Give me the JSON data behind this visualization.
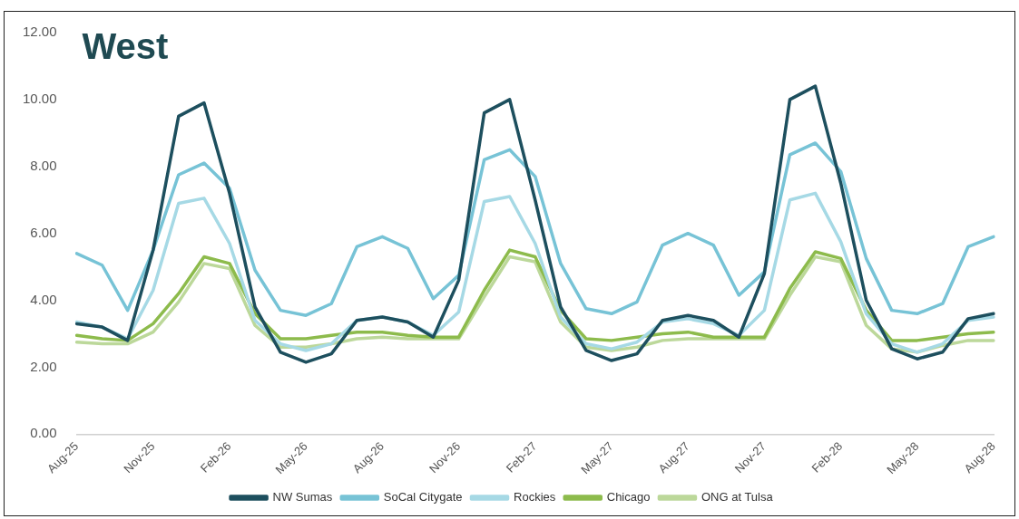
{
  "chart_data": {
    "type": "line",
    "title": "West",
    "categories": [
      "Aug-25",
      null,
      null,
      "Nov-25",
      null,
      null,
      "Feb-26",
      null,
      null,
      "May-26",
      null,
      null,
      "Aug-26",
      null,
      null,
      "Nov-26",
      null,
      null,
      "Feb-27",
      null,
      null,
      "May-27",
      null,
      null,
      "Aug-27",
      null,
      null,
      "Nov-27",
      null,
      null,
      "Feb-28",
      null,
      null,
      "May-28",
      null,
      null,
      "Aug-28"
    ],
    "series": [
      {
        "name": "NW Sumas",
        "color": "#1d4f5e",
        "values": [
          3.3,
          3.2,
          2.8,
          5.5,
          9.5,
          9.9,
          7.2,
          3.8,
          2.45,
          2.15,
          2.4,
          3.4,
          3.5,
          3.35,
          2.9,
          4.6,
          9.6,
          10.0,
          7.0,
          3.8,
          2.5,
          2.2,
          2.4,
          3.4,
          3.55,
          3.4,
          2.9,
          4.8,
          10.0,
          10.4,
          7.5,
          4.0,
          2.55,
          2.25,
          2.45,
          3.45,
          3.6
        ]
      },
      {
        "name": "SoCal Citygate",
        "color": "#77c3d6",
        "values": [
          5.4,
          5.05,
          3.7,
          5.5,
          7.75,
          8.1,
          7.35,
          4.9,
          3.7,
          3.55,
          3.9,
          5.6,
          5.9,
          5.55,
          4.05,
          4.75,
          8.2,
          8.5,
          7.7,
          5.1,
          3.75,
          3.6,
          3.95,
          5.65,
          6.0,
          5.65,
          4.15,
          4.85,
          8.35,
          8.7,
          7.85,
          5.25,
          3.7,
          3.6,
          3.9,
          5.6,
          5.9
        ]
      },
      {
        "name": "Rockies",
        "color": "#a6d9e5",
        "values": [
          3.35,
          3.2,
          2.85,
          4.3,
          6.9,
          7.05,
          5.7,
          3.4,
          2.7,
          2.5,
          2.7,
          3.4,
          3.5,
          3.35,
          2.95,
          3.65,
          6.95,
          7.1,
          5.7,
          3.5,
          2.7,
          2.55,
          2.75,
          3.35,
          3.45,
          3.3,
          2.95,
          3.7,
          7.0,
          7.2,
          5.75,
          3.6,
          2.7,
          2.45,
          2.7,
          3.4,
          3.5
        ]
      },
      {
        "name": "Chicago",
        "color": "#8dbb4c",
        "values": [
          2.95,
          2.85,
          2.8,
          3.3,
          4.2,
          5.3,
          5.1,
          3.6,
          2.85,
          2.85,
          2.95,
          3.05,
          3.05,
          2.95,
          2.9,
          2.9,
          4.3,
          5.5,
          5.3,
          3.7,
          2.85,
          2.8,
          2.9,
          3.0,
          3.05,
          2.9,
          2.9,
          2.9,
          4.35,
          5.45,
          5.25,
          3.7,
          2.8,
          2.8,
          2.9,
          3.0,
          3.05
        ]
      },
      {
        "name": "ONG at Tulsa",
        "color": "#bcd89a",
        "values": [
          2.75,
          2.7,
          2.7,
          3.05,
          3.95,
          5.1,
          4.95,
          3.25,
          2.6,
          2.6,
          2.7,
          2.85,
          2.9,
          2.85,
          2.85,
          2.85,
          4.1,
          5.3,
          5.15,
          3.35,
          2.6,
          2.5,
          2.6,
          2.8,
          2.85,
          2.85,
          2.85,
          2.85,
          4.15,
          5.3,
          5.15,
          3.25,
          2.55,
          2.45,
          2.65,
          2.8,
          2.8
        ]
      }
    ],
    "ylim": [
      0,
      12
    ],
    "yticks": [
      {
        "value": 0,
        "label": "0.00"
      },
      {
        "value": 2,
        "label": "2.00"
      },
      {
        "value": 4,
        "label": "4.00"
      },
      {
        "value": 6,
        "label": "6.00"
      },
      {
        "value": 8,
        "label": "8.00"
      },
      {
        "value": 10,
        "label": "10.00"
      },
      {
        "value": 12,
        "label": "12.00"
      }
    ],
    "grid": false,
    "legend": "bottom",
    "marker": "none",
    "line_style": "solid"
  }
}
